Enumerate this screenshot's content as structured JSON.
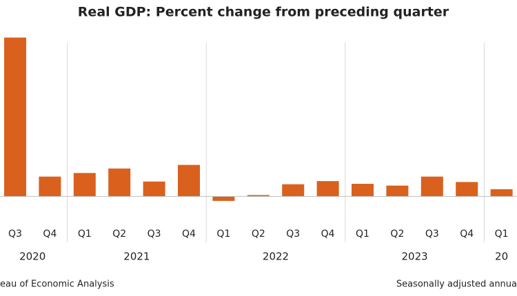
{
  "chart_data": {
    "type": "bar",
    "title": "Real GDP: Percent change from preceding quarter",
    "categories": [
      "Q3",
      "Q4",
      "Q1",
      "Q2",
      "Q3",
      "Q4",
      "Q1",
      "Q2",
      "Q3",
      "Q4",
      "Q1",
      "Q2",
      "Q3",
      "Q4",
      "Q1"
    ],
    "years": [
      "2020",
      "2020",
      "2021",
      "2021",
      "2021",
      "2021",
      "2022",
      "2022",
      "2022",
      "2022",
      "2023",
      "2023",
      "2023",
      "2023",
      "20"
    ],
    "values": [
      35.3,
      4.4,
      5.2,
      6.2,
      3.3,
      7.0,
      -1.0,
      0.3,
      2.7,
      3.4,
      2.8,
      2.4,
      4.4,
      3.2,
      1.6
    ],
    "color": "#d9611d",
    "ylim": [
      -5,
      36
    ],
    "source": "eau of Economic Analysis",
    "note": "Seasonally adjusted annua"
  }
}
